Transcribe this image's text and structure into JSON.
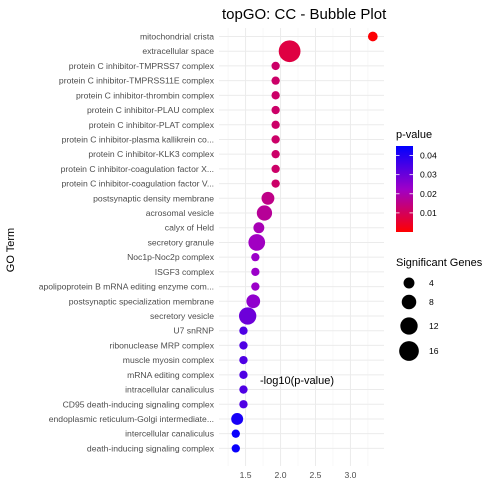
{
  "chart_data": {
    "type": "scatter",
    "title": "topGO: CC - Bubble Plot",
    "xlabel": "-log10(p-value)",
    "ylabel": "GO Term",
    "xlim": [
      1.12,
      3.48
    ],
    "x_ticks": [
      1.5,
      2.0,
      2.5,
      3.0
    ],
    "x_tick_labels": [
      "1.5",
      "2.0",
      "2.5",
      "3.0"
    ],
    "grid": true,
    "points": [
      {
        "term": "mitochondrial crista",
        "x": 3.32,
        "count": 3
      },
      {
        "term": "extracellular space",
        "x": 2.13,
        "count": 20
      },
      {
        "term": "protein C inhibitor-TMPRSS7 complex",
        "x": 1.93,
        "count": 2
      },
      {
        "term": "protein C inhibitor-TMPRSS11E complex",
        "x": 1.93,
        "count": 2
      },
      {
        "term": "protein C inhibitor-thrombin complex",
        "x": 1.93,
        "count": 2
      },
      {
        "term": "protein C inhibitor-PLAU complex",
        "x": 1.93,
        "count": 2
      },
      {
        "term": "protein C inhibitor-PLAT complex",
        "x": 1.93,
        "count": 2
      },
      {
        "term": "protein C inhibitor-plasma kallikrein co...",
        "x": 1.93,
        "count": 2
      },
      {
        "term": "protein C inhibitor-KLK3 complex",
        "x": 1.93,
        "count": 2
      },
      {
        "term": "protein C inhibitor-coagulation factor X...",
        "x": 1.93,
        "count": 2
      },
      {
        "term": "protein C inhibitor-coagulation factor V...",
        "x": 1.93,
        "count": 2
      },
      {
        "term": "postsynaptic density membrane",
        "x": 1.82,
        "count": 6
      },
      {
        "term": "acrosomal vesicle",
        "x": 1.77,
        "count": 9
      },
      {
        "term": "calyx of Held",
        "x": 1.69,
        "count": 4
      },
      {
        "term": "secretory granule",
        "x": 1.66,
        "count": 11
      },
      {
        "term": "Noc1p-Noc2p complex",
        "x": 1.64,
        "count": 2
      },
      {
        "term": "ISGF3 complex",
        "x": 1.64,
        "count": 2
      },
      {
        "term": "apolipoprotein B mRNA editing enzyme com...",
        "x": 1.64,
        "count": 2
      },
      {
        "term": "postsynaptic specialization membrane",
        "x": 1.61,
        "count": 7
      },
      {
        "term": "secretory vesicle",
        "x": 1.53,
        "count": 12
      },
      {
        "term": "U7 snRNP",
        "x": 1.47,
        "count": 2
      },
      {
        "term": "ribonuclease MRP complex",
        "x": 1.47,
        "count": 2
      },
      {
        "term": "muscle myosin complex",
        "x": 1.47,
        "count": 2
      },
      {
        "term": "mRNA editing complex",
        "x": 1.47,
        "count": 2
      },
      {
        "term": "intracellular canaliculus",
        "x": 1.47,
        "count": 2
      },
      {
        "term": "CD95 death-inducing signaling complex",
        "x": 1.47,
        "count": 2
      },
      {
        "term": "endoplasmic reticulum-Golgi intermediate...",
        "x": 1.38,
        "count": 5
      },
      {
        "term": "intercellular canaliculus",
        "x": 1.36,
        "count": 2
      },
      {
        "term": "death-inducing signaling complex",
        "x": 1.36,
        "count": 2
      }
    ],
    "color_legend": {
      "title": "p-value",
      "ticks": [
        0.04,
        0.03,
        0.02,
        0.01
      ],
      "tick_labels": [
        "0.04",
        "0.03",
        "0.02",
        "0.01"
      ],
      "range": [
        0.0,
        0.045
      ],
      "low_color": "#ff0000",
      "high_color": "#0000ff"
    },
    "size_legend": {
      "title": "Significant Genes",
      "values": [
        4,
        8,
        12,
        16
      ],
      "labels": [
        "4",
        "8",
        "12",
        "16"
      ]
    }
  }
}
